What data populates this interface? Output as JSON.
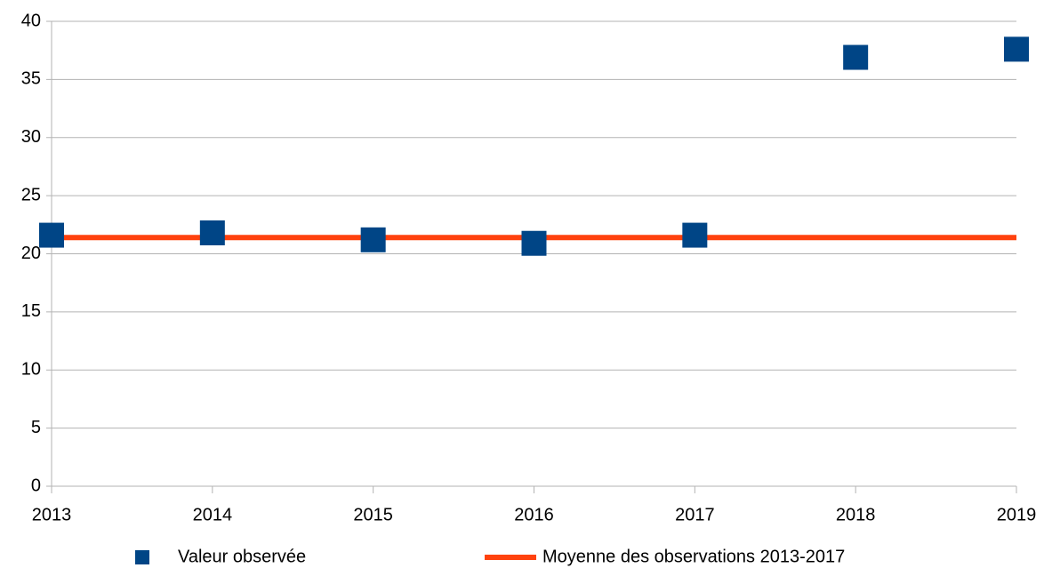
{
  "chart_data": {
    "type": "scatter",
    "x": [
      2013,
      2014,
      2015,
      2016,
      2017,
      2018,
      2019
    ],
    "series": [
      {
        "name": "Valeur observée",
        "type": "scatter",
        "color": "#004586",
        "values": [
          21.6,
          21.8,
          21.2,
          20.9,
          21.6,
          36.9,
          37.6
        ]
      },
      {
        "name": "Moyenne des observations 2013-2017",
        "type": "line",
        "color": "#ff420e",
        "values": [
          21.4,
          21.4,
          21.4,
          21.4,
          21.4,
          21.4,
          21.4
        ]
      }
    ],
    "xlim": [
      2013,
      2019
    ],
    "xticks": [
      2013,
      2014,
      2015,
      2016,
      2017,
      2018,
      2019
    ],
    "ylim": [
      0,
      40
    ],
    "yticks": [
      0,
      5,
      10,
      15,
      20,
      25,
      30,
      35,
      40
    ],
    "grid": true,
    "legend": "bottom"
  }
}
